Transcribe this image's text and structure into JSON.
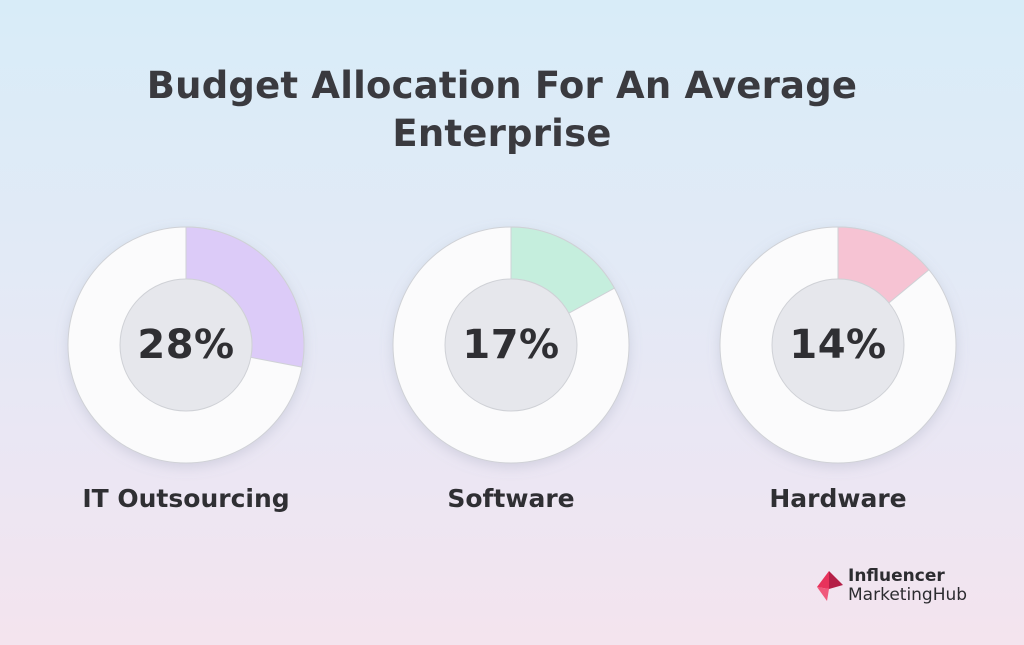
{
  "chart_data": {
    "type": "pie",
    "title_lines": [
      "Budget Allocation For An Average",
      "Enterprise"
    ],
    "donuts": [
      {
        "name": "IT Outsourcing",
        "label": "28%",
        "value": 28,
        "color": "#dccbf8"
      },
      {
        "name": "Software",
        "label": "17%",
        "value": 17,
        "color": "#c5eedd"
      },
      {
        "name": "Hardware",
        "label": "14%",
        "value": 14,
        "color": "#f6c3d3"
      }
    ]
  },
  "colors": {
    "donut_base": "#fbfbfc",
    "donut_stroke": "#cfd1d6",
    "donut_hole": "#e6e7ec"
  },
  "logo": {
    "line1": "Influencer",
    "line2": "MarketingHub",
    "icon": "influencer-marketing-hub-logo-mark",
    "accent": "#e8325b"
  }
}
